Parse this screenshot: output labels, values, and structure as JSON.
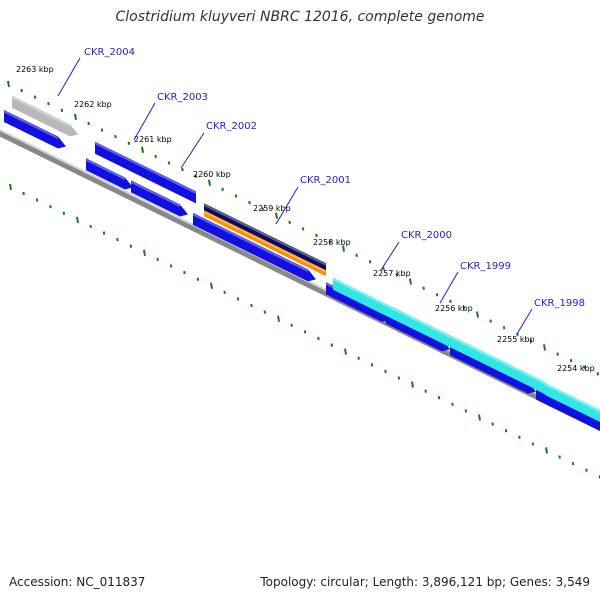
{
  "title": "Clostridium kluyveri NBRC 12016, complete genome",
  "footer": {
    "accession": "Accession: NC_011837",
    "summary": "Topology: circular; Length: 3,896,121 bp; Genes: 3,549"
  },
  "colors": {
    "cds": "#1010e0",
    "highlight_gray": "#b8b8b8",
    "highlight_navy": "#0a0a60",
    "highlight_orange": "#ff8c00",
    "highlight_cyan": "#33e6e6",
    "backbone": "#888888",
    "tick": "#1a7a1a",
    "label": "#1f1fd0"
  },
  "ticks": [
    {
      "label": "2263 kbp"
    },
    {
      "label": "2262 kbp"
    },
    {
      "label": "2261 kbp"
    },
    {
      "label": "2260 kbp"
    },
    {
      "label": "2259 kbp"
    },
    {
      "label": "2258 kbp"
    },
    {
      "label": "2257 kbp"
    },
    {
      "label": "2256 kbp"
    },
    {
      "label": "2255 kbp"
    },
    {
      "label": "2254 kbp"
    }
  ],
  "genes": [
    {
      "name": "CKR_2004"
    },
    {
      "name": "CKR_2003"
    },
    {
      "name": "CKR_2002"
    },
    {
      "name": "CKR_2001"
    },
    {
      "name": "CKR_2000"
    },
    {
      "name": "CKR_1999"
    },
    {
      "name": "CKR_1998"
    }
  ]
}
